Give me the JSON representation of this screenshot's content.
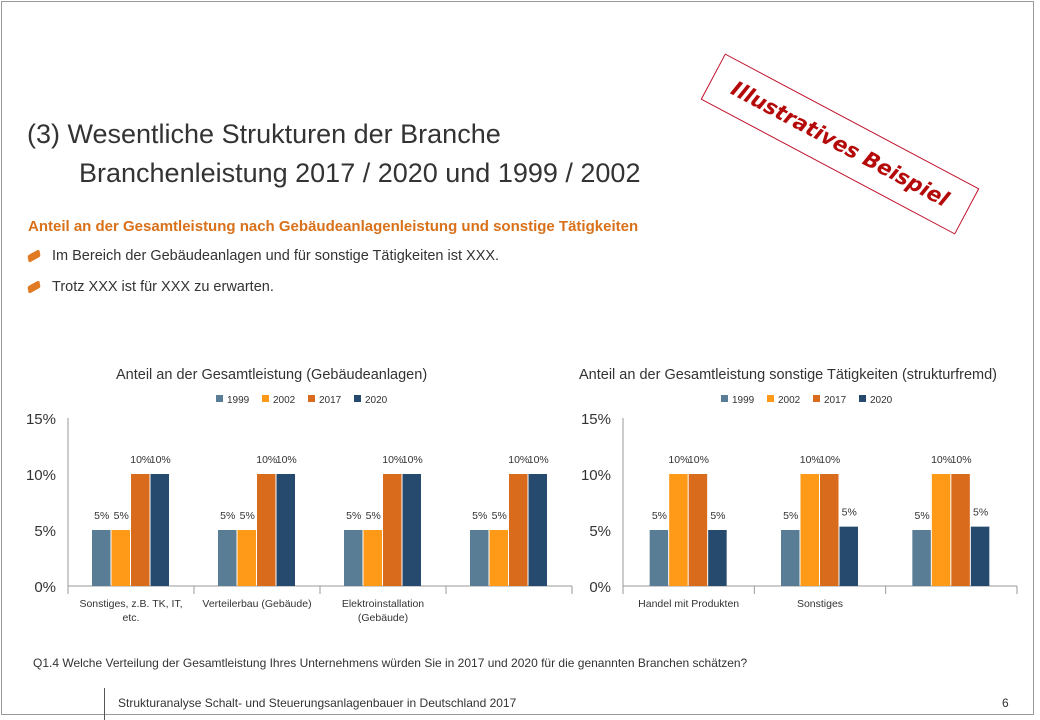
{
  "stamp": "Illustratives Beispiel",
  "title_line1": "(3)  Wesentliche Strukturen der Branche",
  "title_line2": "Branchenleistung 2017 / 2020 und 1999 / 2002",
  "subheading": "Anteil an der Gesamtleistung nach Gebäudeanlagenleistung und sonstige Tätigkeiten",
  "bullets": [
    "Im Bereich der Gebäudeanlagen und für sonstige Tätigkeiten ist XXX.",
    "Trotz XXX ist für XXX zu erwarten."
  ],
  "question": "Q1.4 Welche Verteilung der Gesamtleistung Ihres Unternehmens würden Sie in 2017 und 2020 für die genannten Branchen schätzen?",
  "footer": "Strukturanalyse Schalt- und Steuerungsanlagenbauer in Deutschland 2017",
  "page_number": "6",
  "colors": {
    "1999": "#5a7d96",
    "2002": "#ff9a18",
    "2017": "#d96b1c",
    "2020": "#264a6e"
  },
  "chart_data": [
    {
      "type": "bar",
      "title": "Anteil an der Gesamtleistung (Gebäudeanlagen)",
      "categories": [
        "Sonstiges, z.B. TK, IT, etc.",
        "Verteilerbau (Gebäude)",
        "Elektroinstallation (Gebäude)",
        ""
      ],
      "series": [
        {
          "name": "1999",
          "values": [
            5,
            5,
            5,
            5
          ],
          "labels": [
            "5%",
            "5%",
            "5%",
            "5%"
          ]
        },
        {
          "name": "2002",
          "values": [
            5,
            5,
            5,
            5
          ],
          "labels": [
            "5%",
            "5%",
            "5%",
            "5%"
          ]
        },
        {
          "name": "2017",
          "values": [
            10,
            10,
            10,
            10
          ],
          "labels": [
            "10%",
            "10%",
            "10%",
            "10%"
          ]
        },
        {
          "name": "2020",
          "values": [
            10,
            10,
            10,
            10
          ],
          "labels": [
            "10%",
            "10%",
            "10%",
            "10%"
          ]
        }
      ],
      "ylim": [
        0,
        15
      ],
      "yticks": [
        "0%",
        "5%",
        "10%",
        "15%"
      ],
      "legend_position": "top",
      "grid": false
    },
    {
      "type": "bar",
      "title": "Anteil an der Gesamtleistung sonstige Tätigkeiten (strukturfremd)",
      "categories": [
        "Handel mit Produkten",
        "Sonstiges",
        ""
      ],
      "series": [
        {
          "name": "1999",
          "values": [
            5,
            5,
            5
          ],
          "labels": [
            "5%",
            "5%",
            "5%"
          ]
        },
        {
          "name": "2002",
          "values": [
            10,
            10,
            10
          ],
          "labels": [
            "10%",
            "10%",
            "10%"
          ]
        },
        {
          "name": "2017",
          "values": [
            10,
            10,
            10
          ],
          "labels": [
            "10%",
            "10%",
            "10%"
          ]
        },
        {
          "name": "2020",
          "values": [
            5,
            5.3,
            5.3
          ],
          "labels": [
            "5%",
            "5%",
            "5%"
          ]
        }
      ],
      "ylim": [
        0,
        15
      ],
      "yticks": [
        "0%",
        "5%",
        "10%",
        "15%"
      ],
      "legend_position": "top",
      "grid": false
    }
  ]
}
